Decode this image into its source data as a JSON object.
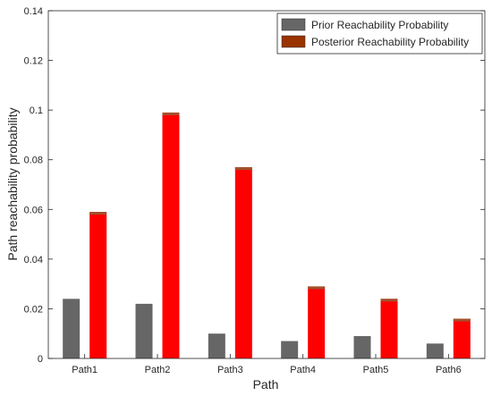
{
  "chart_data": {
    "type": "bar",
    "categories": [
      "Path1",
      "Path2",
      "Path3",
      "Path4",
      "Path5",
      "Path6"
    ],
    "series": [
      {
        "name": "Prior Reachability Probability",
        "values": [
          0.024,
          0.022,
          0.01,
          0.007,
          0.009,
          0.006
        ],
        "color": "#666666"
      },
      {
        "name": "Posterior Reachability Probability",
        "values": [
          0.059,
          0.099,
          0.077,
          0.029,
          0.024,
          0.016
        ],
        "color": "#ff0000",
        "edge_color": "#a0522d"
      }
    ],
    "xlabel": "Path",
    "ylabel": "Path reachability probability",
    "ylim": [
      0,
      0.14
    ],
    "yticks": [
      "0",
      "0.02",
      "0.04",
      "0.06",
      "0.08",
      "0.1",
      "0.12",
      "0.14"
    ],
    "ytick_values": [
      0,
      0.02,
      0.04,
      0.06,
      0.08,
      0.1,
      0.12,
      0.14
    ],
    "grid": false,
    "legend_position": "top-right",
    "legend_swatch_colors": [
      "#666666",
      "#993300"
    ]
  }
}
